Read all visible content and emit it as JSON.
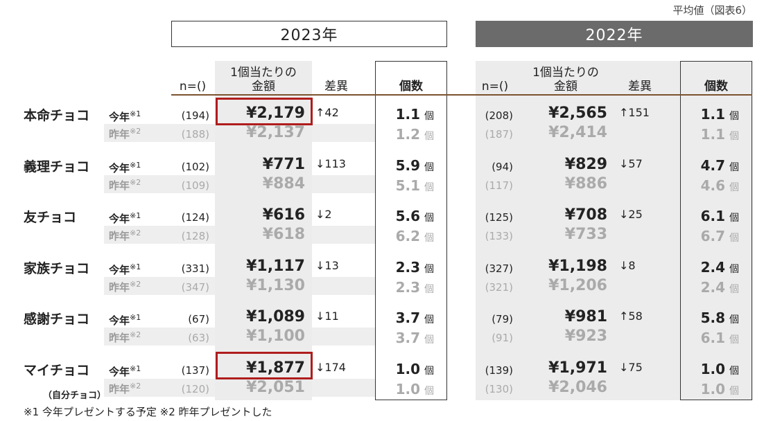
{
  "note": "平均値（図表6）",
  "header_2023": "2023年",
  "header_2022": "2022年",
  "col_n": "n=()",
  "col_amount_line1": "1個当たりの",
  "col_amount_line2": "金額",
  "col_diff": "差異",
  "col_count": "個数",
  "this_year": "今年",
  "this_year_sup": "※1",
  "last_year": "昨年",
  "last_year_sup": "※2",
  "unit": "個",
  "rows": [
    {
      "label": "本命チョコ",
      "sub": "",
      "y2023": {
        "now": {
          "n": "(194)",
          "amt": "¥2,179",
          "cnt": "1.1"
        },
        "prev": {
          "n": "(188)",
          "amt": "¥2,137",
          "cnt": "1.2"
        },
        "diff": "↑42"
      },
      "y2022": {
        "now": {
          "n": "(208)",
          "amt": "¥2,565",
          "cnt": "1.1"
        },
        "prev": {
          "n": "(187)",
          "amt": "¥2,414",
          "cnt": "1.1"
        },
        "diff": "↑151"
      }
    },
    {
      "label": "義理チョコ",
      "sub": "",
      "y2023": {
        "now": {
          "n": "(102)",
          "amt": "¥771",
          "cnt": "5.9"
        },
        "prev": {
          "n": "(109)",
          "amt": "¥884",
          "cnt": "5.1"
        },
        "diff": "↓113"
      },
      "y2022": {
        "now": {
          "n": "(94)",
          "amt": "¥829",
          "cnt": "4.7"
        },
        "prev": {
          "n": "(117)",
          "amt": "¥886",
          "cnt": "4.6"
        },
        "diff": "↓57"
      }
    },
    {
      "label": "友チョコ",
      "sub": "",
      "y2023": {
        "now": {
          "n": "(124)",
          "amt": "¥616",
          "cnt": "5.6"
        },
        "prev": {
          "n": "(128)",
          "amt": "¥618",
          "cnt": "6.2"
        },
        "diff": "↓2"
      },
      "y2022": {
        "now": {
          "n": "(125)",
          "amt": "¥708",
          "cnt": "6.1"
        },
        "prev": {
          "n": "(133)",
          "amt": "¥733",
          "cnt": "6.7"
        },
        "diff": "↓25"
      }
    },
    {
      "label": "家族チョコ",
      "sub": "",
      "y2023": {
        "now": {
          "n": "(331)",
          "amt": "¥1,117",
          "cnt": "2.3"
        },
        "prev": {
          "n": "(347)",
          "amt": "¥1,130",
          "cnt": "2.3"
        },
        "diff": "↓13"
      },
      "y2022": {
        "now": {
          "n": "(327)",
          "amt": "¥1,198",
          "cnt": "2.4"
        },
        "prev": {
          "n": "(321)",
          "amt": "¥1,206",
          "cnt": "2.4"
        },
        "diff": "↓8"
      }
    },
    {
      "label": "感謝チョコ",
      "sub": "",
      "y2023": {
        "now": {
          "n": "(67)",
          "amt": "¥1,089",
          "cnt": "3.7"
        },
        "prev": {
          "n": "(63)",
          "amt": "¥1,100",
          "cnt": "3.7"
        },
        "diff": "↓11"
      },
      "y2022": {
        "now": {
          "n": "(79)",
          "amt": "¥981",
          "cnt": "5.8"
        },
        "prev": {
          "n": "(91)",
          "amt": "¥923",
          "cnt": "6.1"
        },
        "diff": "↑58"
      }
    },
    {
      "label": "マイチョコ",
      "sub": "（自分チョコ）",
      "y2023": {
        "now": {
          "n": "(137)",
          "amt": "¥1,877",
          "cnt": "1.0"
        },
        "prev": {
          "n": "(120)",
          "amt": "¥2,051",
          "cnt": "1.0"
        },
        "diff": "↓174"
      },
      "y2022": {
        "now": {
          "n": "(139)",
          "amt": "¥1,971",
          "cnt": "1.0"
        },
        "prev": {
          "n": "(130)",
          "amt": "¥2,046",
          "cnt": "1.0"
        },
        "diff": "↓75"
      }
    }
  ],
  "footnote": "※1 今年プレゼントする予定 ※2 昨年プレゼントした"
}
